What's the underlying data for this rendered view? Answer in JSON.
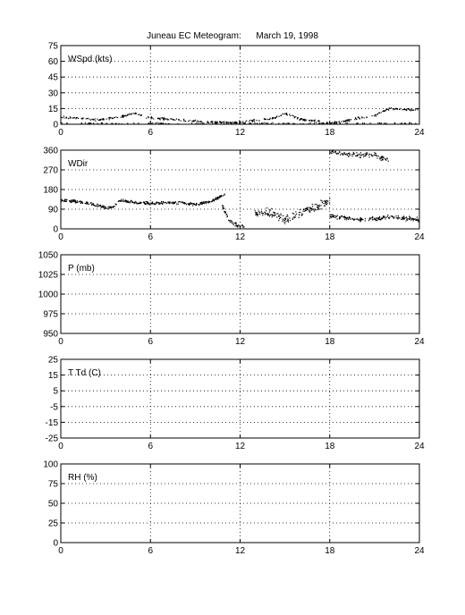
{
  "chart_data": {
    "title": "Juneau EC Meteogram:      March 19, 1998",
    "panels": [
      {
        "type": "scatter",
        "label": "WSpd (kts)",
        "xlim": [
          0,
          24
        ],
        "xticks": [
          0,
          6,
          12,
          18,
          24
        ],
        "ylim": [
          0,
          75
        ],
        "yticks": [
          0,
          15,
          30,
          45,
          60,
          75
        ],
        "grid": true,
        "segments": [
          {
            "x": [
              0,
              1,
              2,
              2.5,
              3,
              3.5,
              4,
              4.5,
              5,
              5.5,
              6,
              7,
              8,
              9,
              10,
              11,
              12,
              12.5,
              13,
              14,
              14.5,
              15,
              15.5,
              16,
              17,
              18,
              18.5,
              19,
              20,
              20.5,
              21,
              21.5,
              22,
              23,
              24
            ],
            "y": [
              7,
              6,
              5,
              4,
              5,
              6,
              7,
              9,
              10,
              8,
              6,
              5,
              4,
              3,
              2,
              2,
              2,
              3,
              4,
              5,
              7,
              10,
              8,
              5,
              3,
              1,
              2,
              3,
              6,
              7,
              8,
              12,
              15,
              14,
              13
            ],
            "spread": 1.5,
            "count": 420
          },
          {
            "x": [
              0,
              2,
              4,
              6,
              8,
              10,
              12,
              14,
              16,
              18,
              20,
              22,
              24
            ],
            "y": [
              1,
              1,
              0.5,
              1,
              0.5,
              1,
              1,
              1,
              0.5,
              1,
              1,
              1,
              1
            ],
            "spread": 0.7,
            "count": 140
          }
        ]
      },
      {
        "type": "scatter",
        "label": "WDir",
        "xlim": [
          0,
          24
        ],
        "xticks": [
          0,
          6,
          12,
          18,
          24
        ],
        "ylim": [
          0,
          360
        ],
        "yticks": [
          0,
          90,
          180,
          270,
          360
        ],
        "grid": true,
        "segments": [
          {
            "x": [
              0,
              1,
              2,
              3,
              3.5,
              4,
              5,
              6,
              7,
              8,
              9,
              10,
              10.5,
              11
            ],
            "y": [
              130,
              125,
              115,
              95,
              100,
              130,
              120,
              115,
              120,
              120,
              110,
              125,
              140,
              160
            ],
            "spread": 10,
            "count": 380
          },
          {
            "x": [
              10.8,
              11.3,
              11.8,
              12.3
            ],
            "y": [
              110,
              35,
              15,
              10
            ],
            "spread": 12,
            "count": 50
          },
          {
            "x": [
              13,
              14,
              15,
              16,
              17,
              18
            ],
            "y": [
              70,
              75,
              40,
              70,
              100,
              130
            ],
            "spread": 30,
            "count": 180
          },
          {
            "x": [
              18,
              19,
              20,
              21,
              22
            ],
            "y": [
              350,
              345,
              335,
              340,
              310
            ],
            "spread": 18,
            "count": 110
          },
          {
            "x": [
              18,
              19,
              20,
              21,
              22,
              23,
              24
            ],
            "y": [
              60,
              50,
              40,
              45,
              55,
              50,
              40
            ],
            "spread": 14,
            "count": 200
          }
        ]
      },
      {
        "type": "line",
        "label": "P (mb)",
        "xlim": [
          0,
          24
        ],
        "xticks": [
          0,
          6,
          12,
          18,
          24
        ],
        "ylim": [
          950,
          1050
        ],
        "yticks": [
          950,
          975,
          1000,
          1025,
          1050
        ],
        "grid": true,
        "segments": []
      },
      {
        "type": "line",
        "label": "T Td (C)",
        "xlim": [
          0,
          24
        ],
        "xticks": [
          0,
          6,
          12,
          18,
          24
        ],
        "ylim": [
          -25,
          25
        ],
        "yticks": [
          -25,
          -15,
          -5,
          5,
          15,
          25
        ],
        "grid": true,
        "segments": []
      },
      {
        "type": "line",
        "label": "RH (%)",
        "xlim": [
          0,
          24
        ],
        "xticks": [
          0,
          6,
          12,
          18,
          24
        ],
        "ylim": [
          0,
          100
        ],
        "yticks": [
          0,
          25,
          50,
          75,
          100
        ],
        "grid": true,
        "segments": []
      }
    ]
  }
}
